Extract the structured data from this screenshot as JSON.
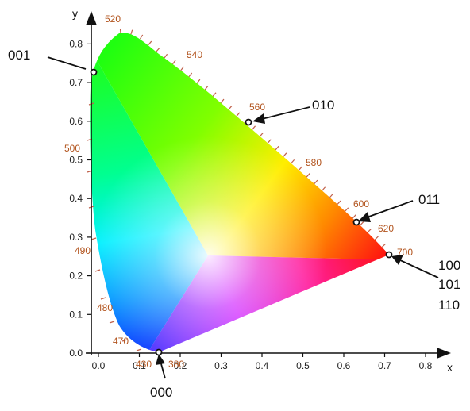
{
  "axes": {
    "x_label": "x",
    "y_label": "y",
    "x_ticks": [
      "0.0",
      "0.1",
      "0.2",
      "0.3",
      "0.4",
      "0.5",
      "0.6",
      "0.7",
      "0.8"
    ],
    "y_ticks": [
      "0.0",
      "0.1",
      "0.2",
      "0.3",
      "0.4",
      "0.5",
      "0.6",
      "0.7",
      "0.8"
    ]
  },
  "wavelength_labels": [
    "380",
    "430",
    "470",
    "480",
    "490",
    "500",
    "520",
    "540",
    "560",
    "580",
    "600",
    "620",
    "700"
  ],
  "annotations": [
    {
      "code": "001"
    },
    {
      "code": "010"
    },
    {
      "code": "011"
    },
    {
      "code": "000"
    },
    {
      "code_lines": [
        "100",
        "101",
        "110"
      ]
    }
  ],
  "colors": {
    "locus_ticks": "#c0604a",
    "label_brown": "#b2541e",
    "red": "#ff1010",
    "green": "#30ff20",
    "blue": "#1040ff"
  }
}
